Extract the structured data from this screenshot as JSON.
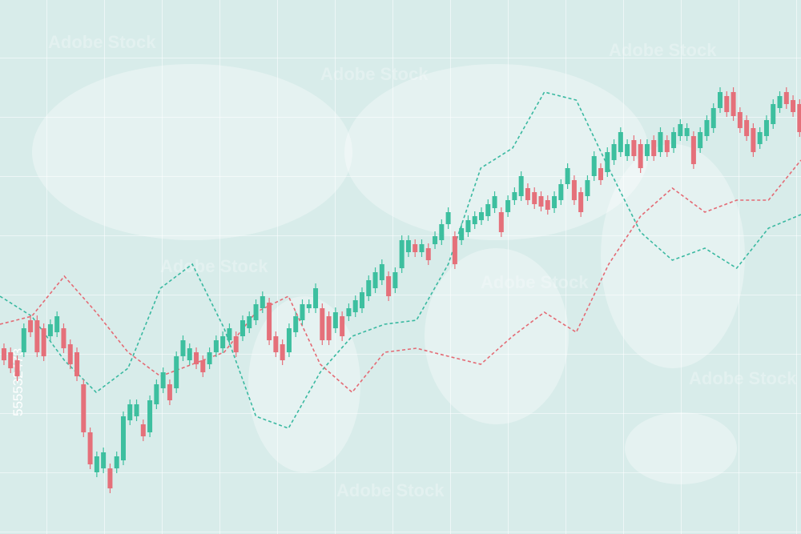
{
  "chart_data": {
    "type": "candlestick",
    "watermark": "Adobe Stock",
    "stock_id": "555532473",
    "xlim": [
      -0.6,
      120.2
    ],
    "ylim": [
      33,
      700
    ],
    "up_color": "#3dbf9f",
    "down_color": "#e5707a",
    "open": [
      265,
      260,
      250,
      260,
      300,
      300,
      290,
      280,
      285,
      290,
      270,
      260,
      220,
      160,
      110,
      115,
      115,
      115,
      125,
      175,
      180,
      170,
      160,
      195,
      215,
      220,
      215,
      255,
      250,
      260,
      250,
      245,
      260,
      265,
      275,
      280,
      280,
      290,
      300,
      315,
      322,
      280,
      270,
      260,
      285,
      300,
      315,
      315,
      315,
      305,
      290,
      305,
      305,
      310,
      315,
      330,
      340,
      350,
      355,
      340,
      365,
      385,
      395,
      385,
      390,
      395,
      400,
      420,
      405,
      400,
      410,
      420,
      425,
      430,
      440,
      435,
      435,
      450,
      455,
      465,
      460,
      455,
      450,
      440,
      450,
      470,
      475,
      460,
      455,
      480,
      490,
      485,
      500,
      510,
      505,
      525,
      520,
      505,
      525,
      510,
      525,
      515,
      530,
      530,
      530,
      515,
      530,
      540,
      565,
      580,
      585,
      560,
      550,
      540,
      520,
      530,
      545,
      565,
      585,
      575,
      570
    ],
    "high": [
      271,
      266,
      256,
      296,
      306,
      306,
      296,
      301,
      311,
      296,
      276,
      266,
      226,
      166,
      136,
      141,
      121,
      136,
      186,
      201,
      201,
      176,
      206,
      226,
      241,
      226,
      261,
      281,
      271,
      266,
      256,
      266,
      281,
      286,
      296,
      286,
      306,
      311,
      326,
      336,
      328,
      286,
      276,
      296,
      311,
      326,
      326,
      346,
      321,
      311,
      316,
      311,
      321,
      331,
      341,
      356,
      366,
      376,
      361,
      366,
      406,
      406,
      401,
      401,
      396,
      411,
      426,
      441,
      411,
      421,
      431,
      436,
      441,
      451,
      461,
      441,
      456,
      466,
      486,
      471,
      466,
      461,
      456,
      461,
      476,
      496,
      481,
      466,
      481,
      511,
      496,
      516,
      526,
      541,
      526,
      531,
      526,
      526,
      531,
      541,
      531,
      541,
      551,
      546,
      536,
      541,
      556,
      571,
      591,
      586,
      591,
      566,
      556,
      546,
      541,
      556,
      576,
      586,
      591,
      581,
      576
    ],
    "low": [
      244,
      234,
      224,
      254,
      279,
      254,
      249,
      274,
      279,
      259,
      239,
      224,
      154,
      114,
      104,
      109,
      84,
      109,
      119,
      169,
      174,
      149,
      154,
      189,
      209,
      194,
      209,
      249,
      244,
      239,
      229,
      239,
      254,
      259,
      269,
      254,
      274,
      284,
      294,
      309,
      269,
      254,
      244,
      254,
      279,
      294,
      309,
      309,
      269,
      269,
      284,
      274,
      299,
      304,
      309,
      324,
      334,
      344,
      324,
      334,
      359,
      379,
      379,
      379,
      369,
      389,
      394,
      414,
      364,
      394,
      404,
      414,
      419,
      424,
      434,
      404,
      429,
      444,
      449,
      444,
      439,
      436,
      432,
      434,
      444,
      464,
      444,
      429,
      449,
      474,
      469,
      479,
      494,
      504,
      499,
      499,
      484,
      499,
      499,
      504,
      504,
      509,
      524,
      524,
      489,
      509,
      524,
      534,
      559,
      554,
      549,
      534,
      524,
      504,
      514,
      524,
      539,
      559,
      564,
      554,
      529
    ],
    "close": [
      250,
      240,
      230,
      290,
      285,
      260,
      255,
      295,
      305,
      265,
      245,
      230,
      160,
      120,
      130,
      135,
      90,
      130,
      180,
      195,
      195,
      155,
      200,
      220,
      235,
      200,
      255,
      275,
      265,
      245,
      235,
      260,
      275,
      280,
      290,
      260,
      300,
      305,
      320,
      330,
      275,
      260,
      250,
      290,
      305,
      320,
      320,
      340,
      275,
      275,
      310,
      280,
      315,
      325,
      335,
      350,
      360,
      370,
      330,
      360,
      400,
      400,
      385,
      395,
      375,
      405,
      420,
      435,
      370,
      415,
      425,
      430,
      435,
      445,
      455,
      410,
      450,
      460,
      480,
      450,
      445,
      442,
      438,
      455,
      470,
      490,
      450,
      435,
      475,
      505,
      475,
      510,
      520,
      535,
      520,
      505,
      490,
      520,
      505,
      535,
      510,
      535,
      545,
      540,
      495,
      535,
      550,
      565,
      585,
      560,
      555,
      540,
      530,
      510,
      535,
      550,
      570,
      580,
      570,
      560,
      535
    ],
    "series": [
      {
        "color": "#3ab9a1",
        "x": [
          -0.6,
          4.2,
          9.1,
          13.9,
          18.7,
          23.6,
          28.4,
          33.2,
          38,
          42.9,
          47.7,
          52.5,
          57.4,
          62.2,
          67,
          71.9,
          76.7,
          81.5,
          86.3,
          91.2,
          96,
          100.8,
          105.7,
          110.5,
          115.3,
          120.2
        ],
        "values": [
          330,
          305,
          250,
          210,
          240,
          340,
          370,
          290,
          180,
          165,
          235,
          280,
          295,
          300,
          370,
          490,
          515,
          585,
          575,
          490,
          410,
          375,
          390,
          365,
          415,
          432
        ]
      },
      {
        "color": "#e46a74",
        "x": [
          -0.6,
          4.2,
          9.1,
          13.9,
          18.7,
          23.6,
          28.4,
          33.2,
          38,
          42.9,
          47.7,
          52.5,
          57.4,
          62.2,
          67,
          71.9,
          76.7,
          81.5,
          86.3,
          91.2,
          96,
          100.8,
          105.7,
          110.5,
          115.3,
          120.2
        ],
        "values": [
          295,
          305,
          355,
          310,
          260,
          230,
          245,
          260,
          310,
          330,
          245,
          210,
          260,
          265,
          255,
          245,
          280,
          310,
          285,
          370,
          430,
          465,
          435,
          450,
          450,
          500
        ]
      }
    ]
  }
}
